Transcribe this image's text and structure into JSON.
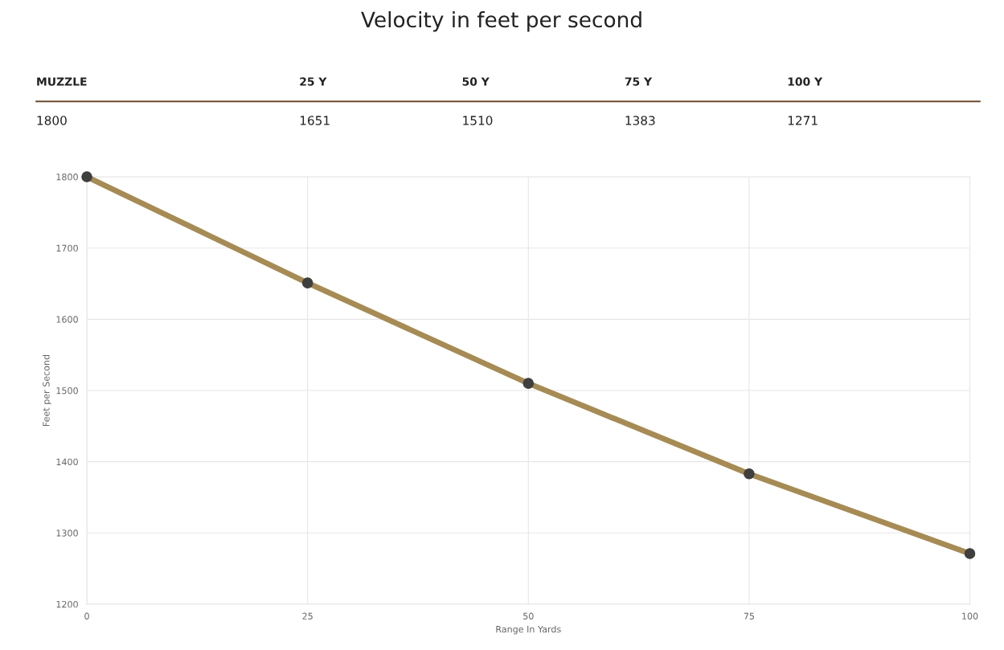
{
  "chart_data": {
    "type": "line",
    "title": "Velocity in feet per second",
    "xlabel": "Range In Yards",
    "ylabel": "Feet per Second",
    "annotations": [
      "MUZZLE",
      "25 Y",
      "50 Y",
      "75 Y",
      "100 Y",
      "1800",
      "1651",
      "1510",
      "1383",
      "1271"
    ],
    "x": [
      0,
      25,
      50,
      75,
      100
    ],
    "series": [
      {
        "color": "#a68b55",
        "values": [
          1800,
          1651,
          1510,
          1383,
          1271
        ]
      }
    ],
    "xlim": [
      0,
      100
    ],
    "xticks": [
      0,
      25,
      50,
      75,
      100
    ],
    "ylim": [
      1200,
      1800
    ],
    "yticks": [
      1200,
      1300,
      1400,
      1500,
      1600,
      1700,
      1800
    ],
    "grid": true,
    "marker": "circle",
    "line_style": "solid"
  }
}
